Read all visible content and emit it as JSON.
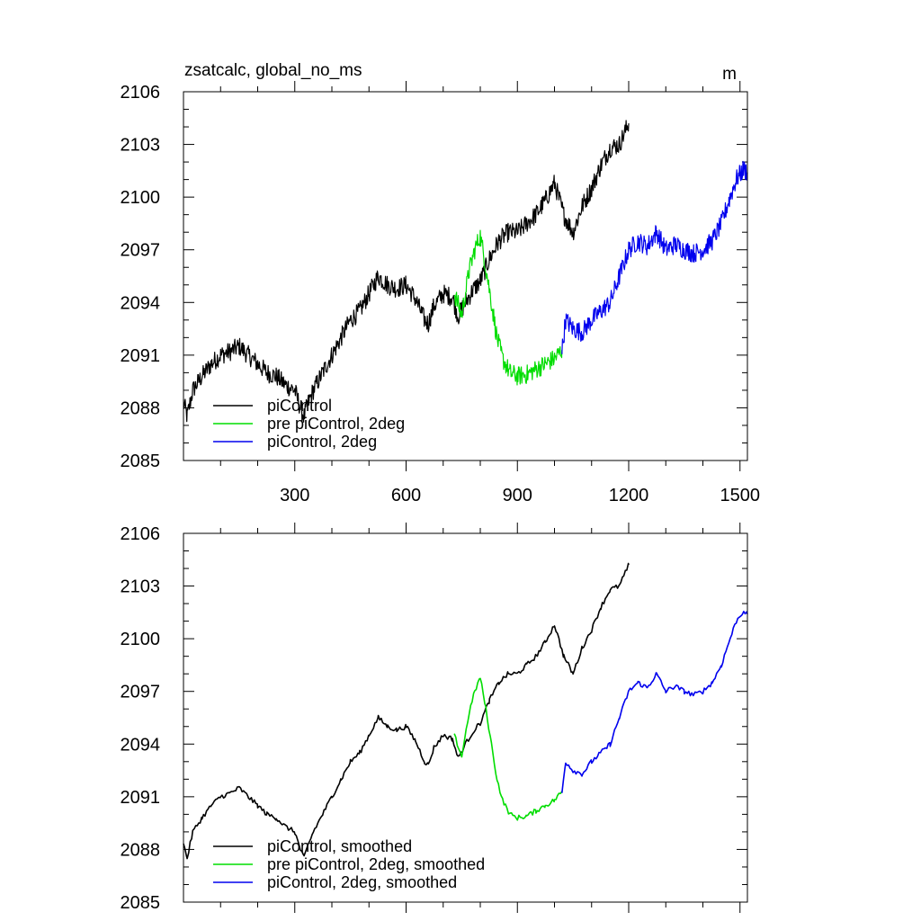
{
  "chart_data": [
    {
      "type": "line",
      "title": "zsatcalc, global_no_ms",
      "units": "m",
      "xlabel": "",
      "ylabel": "",
      "xlim": [
        0,
        1520
      ],
      "ylim": [
        2085,
        2106
      ],
      "x_ticks": [
        300,
        600,
        900,
        1200,
        1500
      ],
      "x_tick_labels": [
        "300",
        "600",
        "900",
        "1200",
        "1500"
      ],
      "y_ticks": [
        2085,
        2088,
        2091,
        2094,
        2097,
        2100,
        2103,
        2106
      ],
      "y_tick_labels": [
        "2085",
        "2088",
        "2091",
        "2094",
        "2097",
        "2100",
        "2103",
        "2106"
      ],
      "grid": false,
      "legend_position": "bottom-left",
      "series": [
        {
          "name": "piControl",
          "color": "#000000",
          "style": "noisy",
          "x": [
            0,
            10,
            25,
            50,
            75,
            100,
            125,
            150,
            175,
            200,
            225,
            250,
            275,
            300,
            315,
            325,
            335,
            350,
            375,
            400,
            425,
            450,
            475,
            500,
            525,
            550,
            575,
            600,
            625,
            650,
            660,
            675,
            700,
            725,
            740,
            760,
            780,
            800,
            825,
            850,
            875,
            900,
            925,
            950,
            975,
            1000,
            1025,
            1050,
            1075,
            1100,
            1125,
            1150,
            1175,
            1200
          ],
          "values": [
            2088.3,
            2087.5,
            2089.0,
            2089.8,
            2090.5,
            2091.0,
            2091.2,
            2091.5,
            2091.0,
            2090.5,
            2090.0,
            2089.8,
            2089.3,
            2089.0,
            2088.0,
            2087.5,
            2088.2,
            2089.0,
            2090.0,
            2091.0,
            2092.0,
            2093.0,
            2093.5,
            2094.5,
            2095.5,
            2095.0,
            2094.8,
            2095.0,
            2094.2,
            2093.0,
            2092.8,
            2093.8,
            2094.5,
            2094.3,
            2093.2,
            2094.0,
            2094.7,
            2095.2,
            2096.5,
            2097.5,
            2098.0,
            2098.0,
            2098.5,
            2099.0,
            2099.8,
            2100.8,
            2099.0,
            2098.0,
            2099.5,
            2100.5,
            2101.8,
            2102.8,
            2103.0,
            2104.2
          ]
        },
        {
          "name": "pre piControl, 2deg",
          "color": "#00dd00",
          "style": "noisy",
          "x": [
            730,
            750,
            770,
            785,
            800,
            815,
            830,
            845,
            860,
            880,
            900,
            925,
            950,
            975,
            1000,
            1020
          ],
          "values": [
            2094.5,
            2093.3,
            2095.8,
            2097.0,
            2097.8,
            2096.0,
            2094.0,
            2092.0,
            2090.8,
            2090.0,
            2089.8,
            2089.9,
            2090.2,
            2090.5,
            2090.8,
            2091.3
          ]
        },
        {
          "name": "piControl, 2deg",
          "color": "#0000ee",
          "style": "noisy",
          "x": [
            1020,
            1030,
            1050,
            1075,
            1100,
            1125,
            1150,
            1175,
            1200,
            1225,
            1250,
            1275,
            1300,
            1325,
            1350,
            1375,
            1400,
            1425,
            1450,
            1470,
            1490,
            1510,
            1520
          ],
          "values": [
            2091.2,
            2093.0,
            2092.5,
            2092.3,
            2093.0,
            2093.5,
            2094.0,
            2095.5,
            2097.0,
            2097.5,
            2097.2,
            2098.0,
            2097.0,
            2097.3,
            2097.0,
            2096.8,
            2097.0,
            2097.5,
            2098.5,
            2099.8,
            2101.0,
            2101.6,
            2101.4
          ]
        }
      ]
    },
    {
      "type": "line",
      "title": "",
      "xlabel": "",
      "ylabel": "",
      "xlim": [
        0,
        1520
      ],
      "ylim": [
        2085,
        2106
      ],
      "x_ticks": [
        300,
        600,
        900,
        1200,
        1500
      ],
      "y_ticks": [
        2085,
        2088,
        2091,
        2094,
        2097,
        2100,
        2103,
        2106
      ],
      "y_tick_labels": [
        "2085",
        "2088",
        "2091",
        "2094",
        "2097",
        "2100",
        "2103",
        "2106"
      ],
      "grid": false,
      "legend_position": "bottom-left",
      "series": [
        {
          "name": "piControl, smoothed",
          "color": "#000000",
          "style": "smooth",
          "x": [
            0,
            10,
            25,
            50,
            75,
            100,
            125,
            150,
            175,
            200,
            225,
            250,
            275,
            300,
            315,
            325,
            335,
            350,
            375,
            400,
            425,
            450,
            475,
            500,
            525,
            550,
            575,
            600,
            625,
            650,
            660,
            675,
            700,
            725,
            740,
            760,
            780,
            800,
            825,
            850,
            875,
            900,
            925,
            950,
            975,
            1000,
            1025,
            1050,
            1075,
            1100,
            1125,
            1150,
            1175,
            1200
          ],
          "values": [
            2088.3,
            2087.5,
            2089.0,
            2089.8,
            2090.5,
            2091.0,
            2091.2,
            2091.5,
            2091.0,
            2090.5,
            2090.0,
            2089.8,
            2089.3,
            2089.0,
            2088.0,
            2087.5,
            2088.2,
            2089.0,
            2090.0,
            2091.0,
            2092.0,
            2093.0,
            2093.5,
            2094.5,
            2095.5,
            2095.0,
            2094.8,
            2095.0,
            2094.2,
            2093.0,
            2092.8,
            2093.8,
            2094.5,
            2094.3,
            2093.2,
            2094.0,
            2094.7,
            2095.2,
            2096.5,
            2097.5,
            2098.0,
            2098.0,
            2098.5,
            2099.0,
            2099.8,
            2100.8,
            2099.0,
            2098.0,
            2099.5,
            2100.5,
            2101.8,
            2102.8,
            2103.0,
            2104.2
          ]
        },
        {
          "name": "pre piControl, 2deg, smoothed",
          "color": "#00dd00",
          "style": "smooth",
          "x": [
            730,
            750,
            770,
            785,
            800,
            815,
            830,
            845,
            860,
            880,
            900,
            925,
            950,
            975,
            1000,
            1020
          ],
          "values": [
            2094.5,
            2093.3,
            2095.8,
            2097.0,
            2097.8,
            2096.0,
            2094.0,
            2092.0,
            2090.8,
            2090.0,
            2089.8,
            2089.9,
            2090.2,
            2090.5,
            2090.8,
            2091.3
          ]
        },
        {
          "name": "piControl, 2deg, smoothed",
          "color": "#0000ee",
          "style": "smooth",
          "x": [
            1020,
            1030,
            1050,
            1075,
            1100,
            1125,
            1150,
            1175,
            1200,
            1225,
            1250,
            1275,
            1300,
            1325,
            1350,
            1375,
            1400,
            1425,
            1450,
            1470,
            1490,
            1510,
            1520
          ],
          "values": [
            2091.2,
            2093.0,
            2092.5,
            2092.3,
            2093.0,
            2093.5,
            2094.0,
            2095.5,
            2097.0,
            2097.5,
            2097.2,
            2098.0,
            2097.0,
            2097.3,
            2097.0,
            2096.8,
            2097.0,
            2097.5,
            2098.5,
            2099.8,
            2101.0,
            2101.6,
            2101.4
          ]
        }
      ]
    }
  ]
}
